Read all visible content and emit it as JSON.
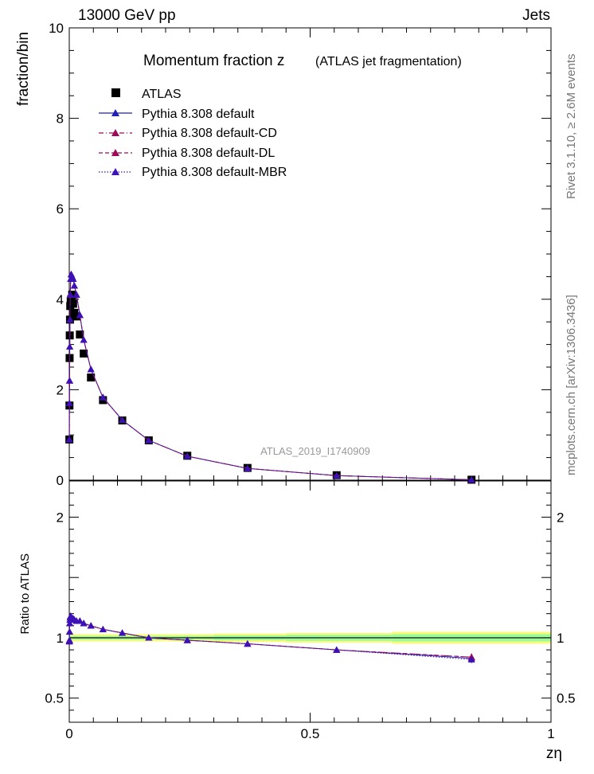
{
  "header": {
    "left": "13000 GeV pp",
    "right": "Jets",
    "title": "Momentum fraction z",
    "subtitle": "(ATLAS jet fragmentation)",
    "analysis": "ATLAS_2019_I1740909",
    "rivet_note": "Rivet 3.1.10, ≥ 2.6M events",
    "mcplots_note": "mcplots.cern.ch [arXiv:1306.3436]"
  },
  "colors": {
    "data": "#000000",
    "default": "#1f1fb4",
    "cd": "#9e0a5a",
    "dl": "#9e0a5a",
    "mbr": "#3a12b8",
    "band_inner": "#9bfa9b",
    "band_outer": "#fafa78"
  },
  "chart_data": [
    {
      "type": "scatter",
      "panel": "main",
      "ylabel": "fraction/bin",
      "xlabel": "",
      "xlim": [
        0,
        1
      ],
      "ylim": [
        0,
        10
      ],
      "y_ticks": [
        "0",
        "2",
        "4",
        "6",
        "8",
        "10"
      ],
      "legend_position": "top-left",
      "series": [
        {
          "name": "ATLAS",
          "marker": "square",
          "x": [
            0.0002,
            0.0004,
            0.0007,
            0.001,
            0.0015,
            0.002,
            0.003,
            0.004,
            0.006,
            0.008,
            0.0105,
            0.015,
            0.022,
            0.03,
            0.045,
            0.07,
            0.11,
            0.165,
            0.245,
            0.37,
            0.555,
            0.835
          ],
          "y": [
            0.9,
            1.65,
            2.7,
            3.2,
            3.55,
            3.85,
            3.95,
            4.0,
            4.1,
            3.9,
            3.7,
            3.62,
            3.22,
            2.8,
            2.27,
            1.77,
            1.32,
            0.88,
            0.54,
            0.27,
            0.11,
            0.01
          ]
        },
        {
          "name": "Pythia 8.308 default",
          "marker": "triangle",
          "line": "solid",
          "x": [
            0.0002,
            0.0004,
            0.0007,
            0.001,
            0.0015,
            0.002,
            0.003,
            0.004,
            0.006,
            0.008,
            0.0105,
            0.015,
            0.022,
            0.03,
            0.045,
            0.07,
            0.11,
            0.165,
            0.245,
            0.37,
            0.555,
            0.835
          ],
          "y": [
            0.9,
            1.7,
            2.2,
            2.95,
            3.55,
            4.1,
            4.45,
            4.55,
            4.5,
            4.45,
            4.3,
            4.1,
            3.65,
            3.1,
            2.45,
            1.83,
            1.33,
            0.88,
            0.53,
            0.26,
            0.1,
            0.008
          ]
        },
        {
          "name": "Pythia 8.308 default-CD",
          "marker": "triangle",
          "line": "dashdot",
          "x": [
            0.0002,
            0.0004,
            0.0007,
            0.001,
            0.0015,
            0.002,
            0.003,
            0.004,
            0.006,
            0.008,
            0.0105,
            0.015,
            0.022,
            0.03,
            0.045,
            0.07,
            0.11,
            0.165,
            0.245,
            0.37,
            0.555,
            0.835
          ],
          "y": [
            0.9,
            1.7,
            2.2,
            2.95,
            3.55,
            4.1,
            4.45,
            4.55,
            4.5,
            4.45,
            4.3,
            4.1,
            3.65,
            3.1,
            2.45,
            1.83,
            1.33,
            0.88,
            0.53,
            0.26,
            0.1,
            0.008
          ]
        },
        {
          "name": "Pythia 8.308 default-DL",
          "marker": "triangle",
          "line": "dashed",
          "x": [
            0.0002,
            0.0004,
            0.0007,
            0.001,
            0.0015,
            0.002,
            0.003,
            0.004,
            0.006,
            0.008,
            0.0105,
            0.015,
            0.022,
            0.03,
            0.045,
            0.07,
            0.11,
            0.165,
            0.245,
            0.37,
            0.555,
            0.835
          ],
          "y": [
            0.9,
            1.7,
            2.2,
            2.95,
            3.55,
            4.1,
            4.45,
            4.55,
            4.5,
            4.45,
            4.3,
            4.1,
            3.65,
            3.1,
            2.45,
            1.83,
            1.33,
            0.88,
            0.53,
            0.26,
            0.1,
            0.008
          ]
        },
        {
          "name": "Pythia 8.308 default-MBR",
          "marker": "triangle",
          "line": "dotted",
          "x": [
            0.0002,
            0.0004,
            0.0007,
            0.001,
            0.0015,
            0.002,
            0.003,
            0.004,
            0.006,
            0.008,
            0.0105,
            0.015,
            0.022,
            0.03,
            0.045,
            0.07,
            0.11,
            0.165,
            0.245,
            0.37,
            0.555,
            0.835
          ],
          "y": [
            0.9,
            1.7,
            2.2,
            2.95,
            3.55,
            4.1,
            4.45,
            4.55,
            4.5,
            4.45,
            4.3,
            4.1,
            3.65,
            3.1,
            2.45,
            1.83,
            1.33,
            0.88,
            0.53,
            0.26,
            0.1,
            0.008
          ]
        }
      ]
    },
    {
      "type": "scatter",
      "panel": "ratio",
      "ylabel": "Ratio to ATLAS",
      "xlabel": "zη",
      "xlim": [
        0,
        1
      ],
      "ylim": [
        0.3,
        2.3
      ],
      "y_ticks": [
        "0.5",
        "1",
        "2"
      ],
      "x_ticks": [
        "0",
        "0.5",
        "1"
      ],
      "bands": {
        "edges": [
          0,
          0.3,
          0.45,
          0.67,
          1.0
        ],
        "inner": [
          0.015,
          0.02,
          0.025,
          0.03
        ],
        "outer": [
          0.03,
          0.035,
          0.04,
          0.05
        ]
      },
      "series": [
        {
          "name": "Pythia 8.308 default",
          "x": [
            0.0002,
            0.0004,
            0.0007,
            0.001,
            0.0015,
            0.002,
            0.003,
            0.004,
            0.006,
            0.008,
            0.0105,
            0.015,
            0.022,
            0.03,
            0.045,
            0.07,
            0.11,
            0.165,
            0.245,
            0.37,
            0.555,
            0.835
          ],
          "y": [
            0.97,
            0.98,
            1.05,
            1.12,
            1.15,
            1.17,
            1.18,
            1.17,
            1.16,
            1.16,
            1.15,
            1.14,
            1.14,
            1.12,
            1.1,
            1.07,
            1.04,
            1.0,
            0.98,
            0.95,
            0.9,
            0.83
          ],
          "yerr_last": 0.03
        },
        {
          "name": "Pythia 8.308 default-CD",
          "x": [
            0.0002,
            0.0004,
            0.0007,
            0.001,
            0.0015,
            0.002,
            0.003,
            0.004,
            0.006,
            0.008,
            0.0105,
            0.015,
            0.022,
            0.03,
            0.045,
            0.07,
            0.11,
            0.165,
            0.245,
            0.37,
            0.555,
            0.835
          ],
          "y": [
            0.97,
            0.98,
            1.05,
            1.12,
            1.15,
            1.17,
            1.18,
            1.17,
            1.16,
            1.16,
            1.15,
            1.14,
            1.14,
            1.12,
            1.1,
            1.07,
            1.04,
            1.0,
            0.98,
            0.95,
            0.9,
            0.84
          ],
          "yerr_last": 0.03
        },
        {
          "name": "Pythia 8.308 default-DL",
          "x": [
            0.0002,
            0.0004,
            0.0007,
            0.001,
            0.0015,
            0.002,
            0.003,
            0.004,
            0.006,
            0.008,
            0.0105,
            0.015,
            0.022,
            0.03,
            0.045,
            0.07,
            0.11,
            0.165,
            0.245,
            0.37,
            0.555,
            0.835
          ],
          "y": [
            0.97,
            0.98,
            1.05,
            1.12,
            1.15,
            1.17,
            1.18,
            1.17,
            1.16,
            1.16,
            1.15,
            1.14,
            1.14,
            1.12,
            1.1,
            1.07,
            1.04,
            1.0,
            0.98,
            0.95,
            0.9,
            0.84
          ],
          "yerr_last": 0.03
        },
        {
          "name": "Pythia 8.308 default-MBR",
          "x": [
            0.0002,
            0.0004,
            0.0007,
            0.001,
            0.0015,
            0.002,
            0.003,
            0.004,
            0.006,
            0.008,
            0.0105,
            0.015,
            0.022,
            0.03,
            0.045,
            0.07,
            0.11,
            0.165,
            0.245,
            0.37,
            0.555,
            0.835
          ],
          "y": [
            0.97,
            0.98,
            1.05,
            1.12,
            1.15,
            1.17,
            1.18,
            1.17,
            1.16,
            1.16,
            1.15,
            1.14,
            1.14,
            1.12,
            1.1,
            1.07,
            1.04,
            1.0,
            0.98,
            0.95,
            0.9,
            0.82
          ],
          "yerr_last": 0.03
        }
      ]
    }
  ]
}
